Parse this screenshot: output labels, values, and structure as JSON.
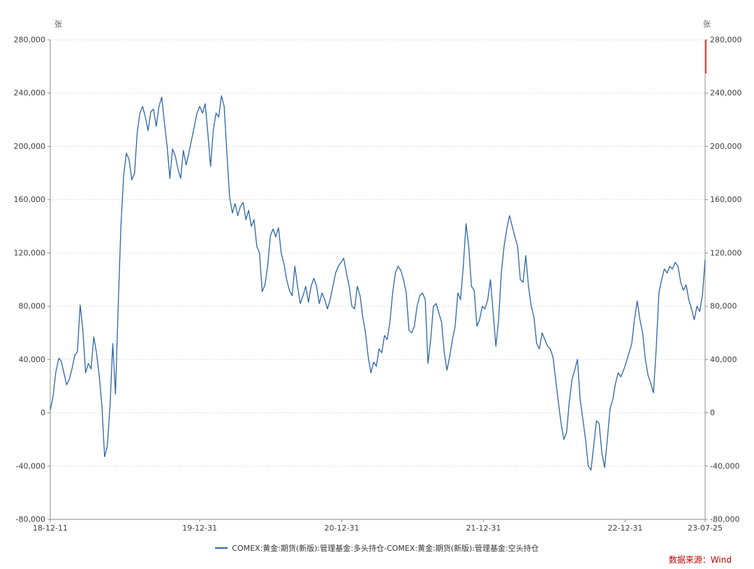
{
  "chart_data": {
    "type": "line",
    "title": "",
    "unit_left": "张",
    "unit_right": "张",
    "ylim": [
      -80000,
      280000
    ],
    "ytick_interval": 40000,
    "y_ticks": [
      {
        "value": -80000,
        "label": "-80,000"
      },
      {
        "value": -40000,
        "label": "-40,000"
      },
      {
        "value": 0,
        "label": "0"
      },
      {
        "value": 40000,
        "label": "40,000"
      },
      {
        "value": 80000,
        "label": "80,000"
      },
      {
        "value": 120000,
        "label": "120,000"
      },
      {
        "value": 160000,
        "label": "160,000"
      },
      {
        "value": 200000,
        "label": "200,000"
      },
      {
        "value": 240000,
        "label": "240,000"
      },
      {
        "value": 280000,
        "label": "280,000"
      }
    ],
    "x_range": [
      "2018-12-11",
      "2023-07-25"
    ],
    "x_ticks": [
      {
        "date": "2018-12-11",
        "label": "18-12-11"
      },
      {
        "date": "2019-12-31",
        "label": "19-12-31"
      },
      {
        "date": "2020-12-31",
        "label": "20-12-31"
      },
      {
        "date": "2021-12-31",
        "label": "21-12-31"
      },
      {
        "date": "2022-12-31",
        "label": "22-12-31"
      },
      {
        "date": "2023-07-25",
        "label": "23-07-25"
      }
    ],
    "grid": {
      "horizontal": true,
      "style": "dotted",
      "color": "#cdcdcd"
    },
    "axis_color": "#8c8c8c",
    "legend": {
      "position": "bottom-center",
      "items": [
        {
          "label": "COMEX:黄金:期货(新版):管理基金:多头持仓-COMEX:黄金:期货(新版):管理基金:空头持仓",
          "color": "#2c64a8"
        }
      ]
    },
    "source_note": "数据来源：Wind",
    "source_color": "#c00000",
    "right_edge_marker_color": "#e0462e",
    "series": [
      {
        "name": "COMEX:黄金:期货(新版):管理基金:多头持仓-COMEX:黄金:期货(新版):管理基金:空头持仓",
        "color": "#2c64a8",
        "points": [
          [
            "2018-12-11",
            2000
          ],
          [
            "2018-12-18",
            12000
          ],
          [
            "2018-12-25",
            30000
          ],
          [
            "2019-01-02",
            41000
          ],
          [
            "2019-01-08",
            39000
          ],
          [
            "2019-01-15",
            30000
          ],
          [
            "2019-01-22",
            21000
          ],
          [
            "2019-01-29",
            25000
          ],
          [
            "2019-02-05",
            33000
          ],
          [
            "2019-02-12",
            43000
          ],
          [
            "2019-02-19",
            46000
          ],
          [
            "2019-02-26",
            81000
          ],
          [
            "2019-03-05",
            62000
          ],
          [
            "2019-03-12",
            30000
          ],
          [
            "2019-03-19",
            37000
          ],
          [
            "2019-03-26",
            33000
          ],
          [
            "2019-04-02",
            57000
          ],
          [
            "2019-04-09",
            45000
          ],
          [
            "2019-04-16",
            28000
          ],
          [
            "2019-04-23",
            5000
          ],
          [
            "2019-04-30",
            -33000
          ],
          [
            "2019-05-07",
            -25000
          ],
          [
            "2019-05-14",
            5000
          ],
          [
            "2019-05-21",
            52000
          ],
          [
            "2019-05-28",
            14000
          ],
          [
            "2019-06-04",
            80000
          ],
          [
            "2019-06-11",
            140000
          ],
          [
            "2019-06-18",
            178000
          ],
          [
            "2019-06-25",
            195000
          ],
          [
            "2019-07-02",
            190000
          ],
          [
            "2019-07-09",
            175000
          ],
          [
            "2019-07-16",
            180000
          ],
          [
            "2019-07-23",
            210000
          ],
          [
            "2019-07-30",
            225000
          ],
          [
            "2019-08-06",
            230000
          ],
          [
            "2019-08-13",
            222000
          ],
          [
            "2019-08-20",
            212000
          ],
          [
            "2019-08-27",
            226000
          ],
          [
            "2019-09-03",
            228000
          ],
          [
            "2019-09-10",
            215000
          ],
          [
            "2019-09-17",
            230000
          ],
          [
            "2019-09-24",
            237000
          ],
          [
            "2019-10-01",
            218000
          ],
          [
            "2019-10-08",
            200000
          ],
          [
            "2019-10-15",
            176000
          ],
          [
            "2019-10-22",
            198000
          ],
          [
            "2019-10-29",
            193000
          ],
          [
            "2019-11-05",
            183000
          ],
          [
            "2019-11-12",
            176000
          ],
          [
            "2019-11-19",
            197000
          ],
          [
            "2019-11-26",
            186000
          ],
          [
            "2019-12-03",
            195000
          ],
          [
            "2019-12-10",
            205000
          ],
          [
            "2019-12-17",
            215000
          ],
          [
            "2019-12-24",
            225000
          ],
          [
            "2019-12-31",
            230000
          ],
          [
            "2020-01-07",
            225000
          ],
          [
            "2020-01-14",
            232000
          ],
          [
            "2020-01-21",
            210000
          ],
          [
            "2020-01-28",
            185000
          ],
          [
            "2020-02-04",
            212000
          ],
          [
            "2020-02-11",
            225000
          ],
          [
            "2020-02-18",
            222000
          ],
          [
            "2020-02-25",
            238000
          ],
          [
            "2020-03-03",
            230000
          ],
          [
            "2020-03-10",
            195000
          ],
          [
            "2020-03-17",
            162000
          ],
          [
            "2020-03-24",
            150000
          ],
          [
            "2020-03-31",
            157000
          ],
          [
            "2020-04-07",
            148000
          ],
          [
            "2020-04-14",
            155000
          ],
          [
            "2020-04-21",
            158000
          ],
          [
            "2020-04-28",
            145000
          ],
          [
            "2020-05-05",
            152000
          ],
          [
            "2020-05-12",
            140000
          ],
          [
            "2020-05-19",
            145000
          ],
          [
            "2020-05-26",
            125000
          ],
          [
            "2020-06-02",
            120000
          ],
          [
            "2020-06-09",
            91000
          ],
          [
            "2020-06-16",
            96000
          ],
          [
            "2020-06-23",
            110000
          ],
          [
            "2020-06-30",
            133000
          ],
          [
            "2020-07-07",
            138000
          ],
          [
            "2020-07-14",
            132000
          ],
          [
            "2020-07-21",
            139000
          ],
          [
            "2020-07-28",
            120000
          ],
          [
            "2020-08-04",
            112000
          ],
          [
            "2020-08-11",
            100000
          ],
          [
            "2020-08-18",
            92000
          ],
          [
            "2020-08-25",
            88000
          ],
          [
            "2020-09-01",
            110000
          ],
          [
            "2020-09-08",
            95000
          ],
          [
            "2020-09-15",
            82000
          ],
          [
            "2020-09-22",
            88000
          ],
          [
            "2020-09-29",
            95000
          ],
          [
            "2020-10-06",
            83000
          ],
          [
            "2020-10-13",
            95000
          ],
          [
            "2020-10-20",
            101000
          ],
          [
            "2020-10-27",
            95000
          ],
          [
            "2020-11-03",
            82000
          ],
          [
            "2020-11-10",
            90000
          ],
          [
            "2020-11-17",
            85000
          ],
          [
            "2020-11-24",
            78000
          ],
          [
            "2020-12-01",
            85000
          ],
          [
            "2020-12-08",
            95000
          ],
          [
            "2020-12-15",
            105000
          ],
          [
            "2020-12-22",
            110000
          ],
          [
            "2020-12-29",
            113000
          ],
          [
            "2021-01-05",
            116000
          ],
          [
            "2021-01-12",
            105000
          ],
          [
            "2021-01-19",
            95000
          ],
          [
            "2021-01-26",
            80000
          ],
          [
            "2021-02-02",
            78000
          ],
          [
            "2021-02-09",
            95000
          ],
          [
            "2021-02-16",
            88000
          ],
          [
            "2021-02-23",
            72000
          ],
          [
            "2021-03-02",
            60000
          ],
          [
            "2021-03-09",
            42000
          ],
          [
            "2021-03-16",
            30000
          ],
          [
            "2021-03-23",
            38000
          ],
          [
            "2021-03-30",
            35000
          ],
          [
            "2021-04-06",
            48000
          ],
          [
            "2021-04-13",
            45000
          ],
          [
            "2021-04-20",
            58000
          ],
          [
            "2021-04-27",
            55000
          ],
          [
            "2021-05-04",
            68000
          ],
          [
            "2021-05-11",
            90000
          ],
          [
            "2021-05-18",
            105000
          ],
          [
            "2021-05-25",
            110000
          ],
          [
            "2021-06-01",
            107000
          ],
          [
            "2021-06-08",
            100000
          ],
          [
            "2021-06-15",
            90000
          ],
          [
            "2021-06-22",
            62000
          ],
          [
            "2021-06-29",
            60000
          ],
          [
            "2021-07-06",
            65000
          ],
          [
            "2021-07-13",
            80000
          ],
          [
            "2021-07-20",
            88000
          ],
          [
            "2021-07-27",
            90000
          ],
          [
            "2021-08-03",
            85000
          ],
          [
            "2021-08-10",
            37000
          ],
          [
            "2021-08-17",
            55000
          ],
          [
            "2021-08-24",
            80000
          ],
          [
            "2021-08-31",
            82000
          ],
          [
            "2021-09-07",
            75000
          ],
          [
            "2021-09-14",
            68000
          ],
          [
            "2021-09-21",
            45000
          ],
          [
            "2021-09-28",
            32000
          ],
          [
            "2021-10-05",
            42000
          ],
          [
            "2021-10-12",
            55000
          ],
          [
            "2021-10-19",
            65000
          ],
          [
            "2021-10-26",
            90000
          ],
          [
            "2021-11-02",
            85000
          ],
          [
            "2021-11-09",
            110000
          ],
          [
            "2021-11-16",
            142000
          ],
          [
            "2021-11-23",
            125000
          ],
          [
            "2021-11-30",
            95000
          ],
          [
            "2021-12-07",
            92000
          ],
          [
            "2021-12-14",
            65000
          ],
          [
            "2021-12-21",
            70000
          ],
          [
            "2021-12-28",
            80000
          ],
          [
            "2022-01-04",
            78000
          ],
          [
            "2022-01-11",
            85000
          ],
          [
            "2022-01-18",
            100000
          ],
          [
            "2022-01-25",
            75000
          ],
          [
            "2022-02-01",
            50000
          ],
          [
            "2022-02-08",
            70000
          ],
          [
            "2022-02-15",
            105000
          ],
          [
            "2022-02-22",
            125000
          ],
          [
            "2022-03-01",
            138000
          ],
          [
            "2022-03-08",
            148000
          ],
          [
            "2022-03-15",
            140000
          ],
          [
            "2022-03-22",
            132000
          ],
          [
            "2022-03-29",
            125000
          ],
          [
            "2022-04-05",
            100000
          ],
          [
            "2022-04-12",
            98000
          ],
          [
            "2022-04-19",
            118000
          ],
          [
            "2022-04-26",
            95000
          ],
          [
            "2022-05-03",
            80000
          ],
          [
            "2022-05-10",
            72000
          ],
          [
            "2022-05-17",
            52000
          ],
          [
            "2022-05-24",
            48000
          ],
          [
            "2022-05-31",
            60000
          ],
          [
            "2022-06-07",
            55000
          ],
          [
            "2022-06-14",
            50000
          ],
          [
            "2022-06-21",
            48000
          ],
          [
            "2022-06-28",
            42000
          ],
          [
            "2022-07-05",
            25000
          ],
          [
            "2022-07-12",
            8000
          ],
          [
            "2022-07-19",
            -8000
          ],
          [
            "2022-07-26",
            -20000
          ],
          [
            "2022-08-02",
            -15000
          ],
          [
            "2022-08-09",
            8000
          ],
          [
            "2022-08-16",
            25000
          ],
          [
            "2022-08-23",
            32000
          ],
          [
            "2022-08-30",
            40000
          ],
          [
            "2022-09-06",
            10000
          ],
          [
            "2022-09-13",
            -5000
          ],
          [
            "2022-09-20",
            -20000
          ],
          [
            "2022-09-27",
            -40000
          ],
          [
            "2022-10-04",
            -43000
          ],
          [
            "2022-10-11",
            -25000
          ],
          [
            "2022-10-18",
            -6000
          ],
          [
            "2022-10-25",
            -8000
          ],
          [
            "2022-11-01",
            -30000
          ],
          [
            "2022-11-08",
            -41000
          ],
          [
            "2022-11-15",
            -20000
          ],
          [
            "2022-11-22",
            3000
          ],
          [
            "2022-11-29",
            10000
          ],
          [
            "2022-12-06",
            22000
          ],
          [
            "2022-12-13",
            30000
          ],
          [
            "2022-12-20",
            27000
          ],
          [
            "2022-12-27",
            32000
          ],
          [
            "2023-01-03",
            38000
          ],
          [
            "2023-01-10",
            45000
          ],
          [
            "2023-01-17",
            52000
          ],
          [
            "2023-01-24",
            70000
          ],
          [
            "2023-01-31",
            84000
          ],
          [
            "2023-02-07",
            70000
          ],
          [
            "2023-02-14",
            60000
          ],
          [
            "2023-02-21",
            40000
          ],
          [
            "2023-02-28",
            28000
          ],
          [
            "2023-03-07",
            22000
          ],
          [
            "2023-03-14",
            15000
          ],
          [
            "2023-03-21",
            48000
          ],
          [
            "2023-03-28",
            90000
          ],
          [
            "2023-04-04",
            100000
          ],
          [
            "2023-04-11",
            108000
          ],
          [
            "2023-04-18",
            105000
          ],
          [
            "2023-04-25",
            110000
          ],
          [
            "2023-05-02",
            108000
          ],
          [
            "2023-05-09",
            113000
          ],
          [
            "2023-05-16",
            110000
          ],
          [
            "2023-05-23",
            98000
          ],
          [
            "2023-05-30",
            92000
          ],
          [
            "2023-06-06",
            96000
          ],
          [
            "2023-06-13",
            85000
          ],
          [
            "2023-06-20",
            78000
          ],
          [
            "2023-06-27",
            70000
          ],
          [
            "2023-07-04",
            80000
          ],
          [
            "2023-07-11",
            76000
          ],
          [
            "2023-07-18",
            88000
          ],
          [
            "2023-07-25",
            115000
          ]
        ]
      }
    ]
  }
}
